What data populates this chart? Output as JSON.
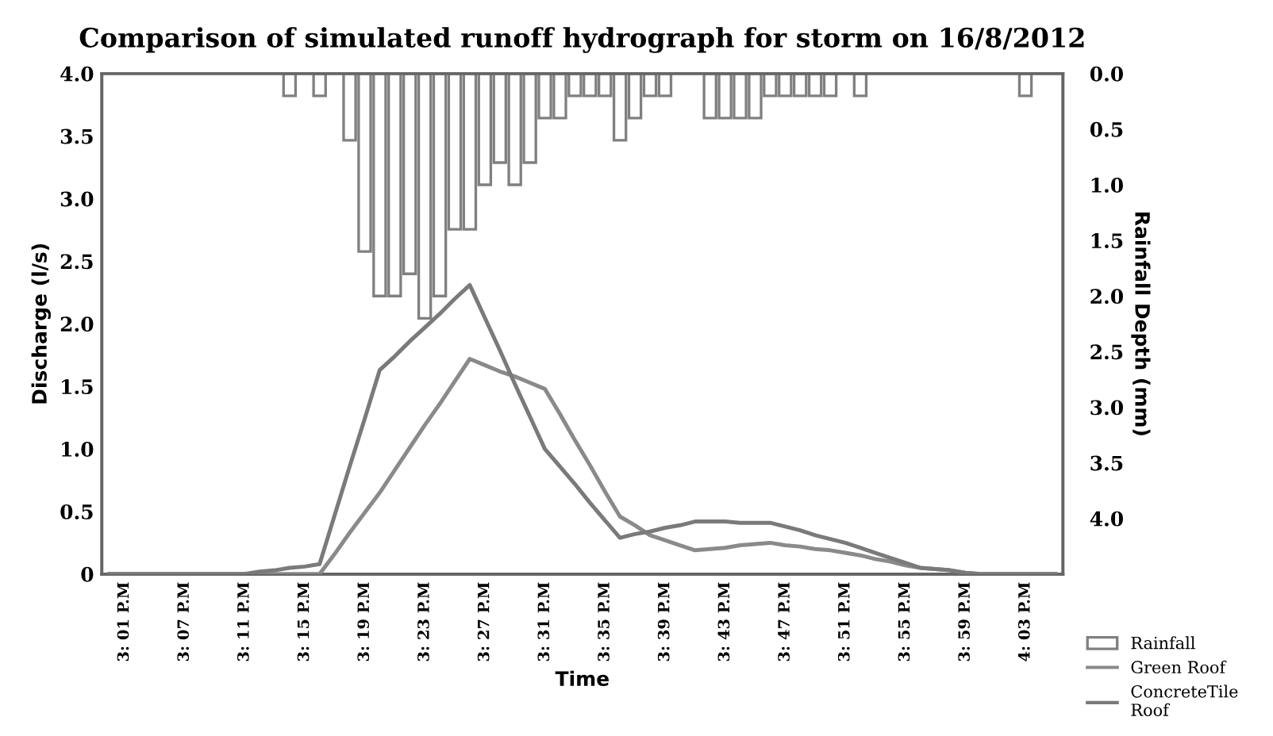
{
  "chart_data": {
    "type": "line",
    "title": "Comparison of simulated runoff hydrograph for storm on 16/8/2012",
    "xlabel": "Time",
    "ylabel": "Discharge (l/s)",
    "y2label": "Rainfall Depth (mm)",
    "categories": [
      null,
      "3: 01 P.M",
      null,
      null,
      null,
      "3: 07 P.M",
      null,
      null,
      null,
      "3: 11 P.M",
      null,
      null,
      null,
      "3: 15 P.M",
      null,
      null,
      null,
      "3: 19 P.M",
      null,
      null,
      null,
      "3: 23 P.M",
      null,
      null,
      null,
      "3: 27 P.M",
      null,
      null,
      null,
      "3: 31 P.M",
      null,
      null,
      null,
      "3: 35 P.M",
      null,
      null,
      null,
      "3: 39 P.M",
      null,
      null,
      null,
      "3: 43 P.M",
      null,
      null,
      null,
      "3: 47 P.M",
      null,
      null,
      null,
      "3: 51 P.M",
      null,
      null,
      null,
      "3: 55 P.M",
      null,
      null,
      null,
      "3: 59 P.M",
      null,
      null,
      null,
      "4: 03 P.M",
      null,
      null
    ],
    "series": [
      {
        "name": "Rainfall",
        "type": "bar",
        "axis": "y2",
        "color": "#808080",
        "values": [
          null,
          null,
          null,
          null,
          null,
          null,
          null,
          null,
          null,
          null,
          null,
          null,
          0.2,
          null,
          0.2,
          null,
          0.6,
          1.6,
          2.0,
          2.0,
          1.8,
          2.2,
          2.0,
          1.4,
          1.4,
          1.0,
          0.8,
          1.0,
          0.8,
          0.4,
          0.4,
          0.2,
          0.2,
          0.2,
          0.6,
          0.4,
          0.2,
          0.2,
          null,
          null,
          0.4,
          0.4,
          0.4,
          0.4,
          0.2,
          0.2,
          0.2,
          0.2,
          0.2,
          null,
          0.2,
          null,
          null,
          null,
          null,
          null,
          null,
          null,
          null,
          null,
          null,
          0.2,
          null,
          null
        ]
      },
      {
        "name": "Green Roof",
        "color": "#8a8a8a",
        "values": [
          0,
          0,
          0,
          0,
          0,
          0,
          0,
          0,
          0,
          0,
          0,
          0,
          0,
          0,
          0,
          0.16,
          0.33,
          0.49,
          0.65,
          0.83,
          1.01,
          1.19,
          1.36,
          1.54,
          1.72,
          1.67,
          1.62,
          1.58,
          1.53,
          1.48,
          1.28,
          1.07,
          0.87,
          0.66,
          0.46,
          0.39,
          0.31,
          0.27,
          0.23,
          0.19,
          0.2,
          0.21,
          0.23,
          0.24,
          0.25,
          0.23,
          0.22,
          0.2,
          0.19,
          0.17,
          0.15,
          0.12,
          0.1,
          0.07,
          0.05,
          0.04,
          0.03,
          0.01,
          0,
          0,
          0,
          0,
          0,
          0
        ]
      },
      {
        "name": "ConcreteTile Roof",
        "color": "#7a7a7a",
        "values": [
          0,
          0,
          0,
          0,
          0,
          0,
          0,
          0,
          0,
          0,
          0.02,
          0.03,
          0.05,
          0.06,
          0.08,
          0.47,
          0.86,
          1.24,
          1.63,
          1.74,
          1.86,
          1.97,
          2.08,
          2.2,
          2.31,
          2.05,
          1.79,
          1.52,
          1.26,
          1.0,
          0.86,
          0.72,
          0.57,
          0.43,
          0.29,
          0.32,
          0.34,
          0.37,
          0.39,
          0.42,
          0.42,
          0.42,
          0.41,
          0.41,
          0.41,
          0.38,
          0.35,
          0.31,
          0.28,
          0.25,
          0.21,
          0.17,
          0.13,
          0.09,
          0.05,
          0.04,
          0.03,
          0.01,
          0,
          0,
          0,
          0,
          0,
          0
        ]
      }
    ],
    "ylim": [
      0,
      4.0
    ],
    "yticks": [
      0,
      0.5,
      {
        "value": 1,
        "label": "1.0"
      },
      1.5,
      {
        "value": 2,
        "label": "2.0"
      },
      2.5,
      {
        "value": 3,
        "label": "3.0"
      },
      3.5,
      {
        "value": 4,
        "label": "4.0"
      }
    ],
    "y2lim": [
      4.5,
      0
    ],
    "y2ticks": [
      {
        "value": 0,
        "label": "0.0"
      },
      0.5,
      {
        "value": 1,
        "label": "1.0"
      },
      1.5,
      {
        "value": 2,
        "label": "2.0"
      },
      2.5,
      {
        "value": 3,
        "label": "3.0"
      },
      3.5,
      {
        "value": 4,
        "label": "4.0"
      }
    ],
    "grid": false,
    "legend": "bottom right"
  }
}
